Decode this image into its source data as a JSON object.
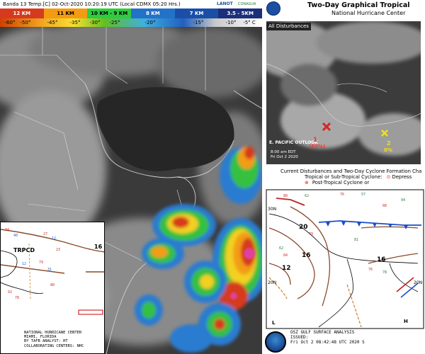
{
  "satellite": {
    "header": "Banda 13 Temp.[C] 02-Oct-2020 10:20:19 UTC (Local CDMX  05:20 Hrs.)",
    "logo_lano": "LANOT",
    "logo_conagua": "CONAGUA",
    "legend": [
      {
        "label": "12 KM",
        "color": "#d63a1e"
      },
      {
        "label": "11 KM",
        "color": "#f39c12"
      },
      {
        "label": "10 KM - 9 KM",
        "color": "#2ecc40"
      },
      {
        "label": "8 KM",
        "color": "#2471c8"
      },
      {
        "label": "7 KM",
        "color": "#1a4fa8"
      },
      {
        "label": "3.5 - 5KM",
        "color": "#1b2f7a"
      }
    ],
    "temp_ticks": [
      "-60°",
      "-50°",
      "-45°",
      "-35°",
      "-30°",
      "-25°",
      "-20°",
      "-15°",
      "-10°",
      "-5° C"
    ]
  },
  "inset": {
    "label_tpcd": "TRPCD",
    "contour_16": "16",
    "footer": "NATIONAL HURRICANE CENTER\nMIAMI, FLORIDA\nBY TAFB ANALYST: HT\nCOLLABORATING CENTERS: NHC"
  },
  "nhc": {
    "title": "Two-Day Graphical Tropical",
    "subtitle": "National Hurricane Center",
    "tag": "All Disturbances",
    "pacific_label": "E. PACIFIC OUTLOOK",
    "pacific_time": "8:00 am EDT",
    "pacific_date": "Fri Oct 2 2020",
    "marker1": "1",
    "marker1_pct": "(60%)",
    "marker2": "2",
    "marker2_pct": "0%",
    "caption1": "Current Disturbances and Two-Day Cyclone Formation Cha",
    "caption2": "Tropical or Sub-Tropical Cyclone:",
    "caption2b": "Depress",
    "caption3": "Post-Tropical Cyclone or"
  },
  "surface": {
    "contours": [
      "20",
      "16",
      "12",
      "16"
    ],
    "lat_labels": [
      "30N",
      "20N",
      "20N"
    ],
    "footer": "OSZ GULF SURFACE ANALYSIS\nISSUED:\nFri Oct 2 08:42:48 UTC 2020 S"
  }
}
